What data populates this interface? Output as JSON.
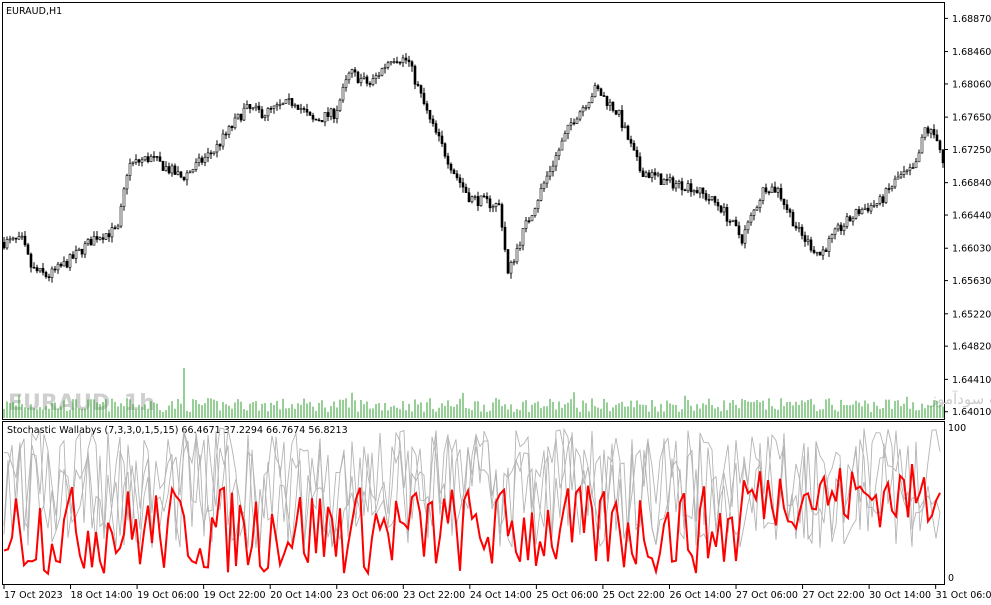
{
  "chart": {
    "symbol_label": "EURAUD,H1",
    "watermark_symbol": "EURAUD",
    "watermark_timeframe": "1h",
    "watermark_text": "انتشار در سایت سودآموز",
    "colors": {
      "bull": "#000000",
      "bear": "#000000",
      "volume": "#2ca02c",
      "stoch_main": "#ff0000",
      "stoch_aux": "#b4b4b4",
      "grid_frame": "#000000"
    }
  },
  "indicator": {
    "label": "Stochastic Wallabys (7,3,3,0,1,5,15) 66.4671 37.2294 66.7674 56.8213",
    "level_top_label": "100",
    "level_bottom_label": "0"
  },
  "chart_data": {
    "type": "candlestick",
    "price_axis": {
      "ylim": [
        1.6392,
        1.6906
      ],
      "ticks": [
        "1.68870",
        "1.68460",
        "1.68060",
        "1.67650",
        "1.67250",
        "1.66840",
        "1.66440",
        "1.66030",
        "1.65630",
        "1.65220",
        "1.64820",
        "1.64410",
        "1.64010"
      ]
    },
    "time_axis": {
      "ticks": [
        "17 Oct 2023",
        "18 Oct 14:00",
        "19 Oct 06:00",
        "19 Oct 22:00",
        "20 Oct 14:00",
        "23 Oct 06:00",
        "23 Oct 22:00",
        "24 Oct 14:00",
        "25 Oct 06:00",
        "25 Oct 22:00",
        "26 Oct 14:00",
        "27 Oct 06:00",
        "27 Oct 22:00",
        "30 Oct 14:00",
        "31 Oct 06:00"
      ]
    },
    "close_path": [
      [
        0,
        1.661
      ],
      [
        22,
        1.6612
      ],
      [
        32,
        1.6577
      ],
      [
        48,
        1.6568
      ],
      [
        72,
        1.659
      ],
      [
        96,
        1.6618
      ],
      [
        118,
        1.6625
      ],
      [
        128,
        1.6705
      ],
      [
        150,
        1.6715
      ],
      [
        182,
        1.669
      ],
      [
        215,
        1.6725
      ],
      [
        245,
        1.6775
      ],
      [
        265,
        1.677
      ],
      [
        295,
        1.6785
      ],
      [
        312,
        1.676
      ],
      [
        335,
        1.677
      ],
      [
        350,
        1.682
      ],
      [
        370,
        1.6805
      ],
      [
        392,
        1.684
      ],
      [
        408,
        1.6835
      ],
      [
        430,
        1.676
      ],
      [
        455,
        1.6695
      ],
      [
        470,
        1.6665
      ],
      [
        500,
        1.6655
      ],
      [
        508,
        1.657
      ],
      [
        522,
        1.662
      ],
      [
        550,
        1.67
      ],
      [
        572,
        1.676
      ],
      [
        596,
        1.68
      ],
      [
        618,
        1.677
      ],
      [
        640,
        1.67
      ],
      [
        665,
        1.6685
      ],
      [
        690,
        1.668
      ],
      [
        720,
        1.6655
      ],
      [
        742,
        1.6615
      ],
      [
        765,
        1.668
      ],
      [
        778,
        1.6675
      ],
      [
        800,
        1.662
      ],
      [
        820,
        1.6595
      ],
      [
        838,
        1.6625
      ],
      [
        860,
        1.665
      ],
      [
        880,
        1.666
      ],
      [
        898,
        1.669
      ],
      [
        915,
        1.67
      ],
      [
        925,
        1.675
      ],
      [
        938,
        1.674
      ],
      [
        946,
        1.6685
      ]
    ],
    "stochastic": {
      "ylim": [
        0,
        100
      ],
      "last_values": [
        66.4671,
        37.2294,
        66.7674,
        56.8213
      ],
      "series": [
        {
          "role": "main",
          "color": "#ff0000"
        },
        {
          "role": "aux",
          "color": "#b4b4b4"
        },
        {
          "role": "aux",
          "color": "#b4b4b4"
        },
        {
          "role": "aux",
          "color": "#b4b4b4"
        }
      ]
    }
  }
}
